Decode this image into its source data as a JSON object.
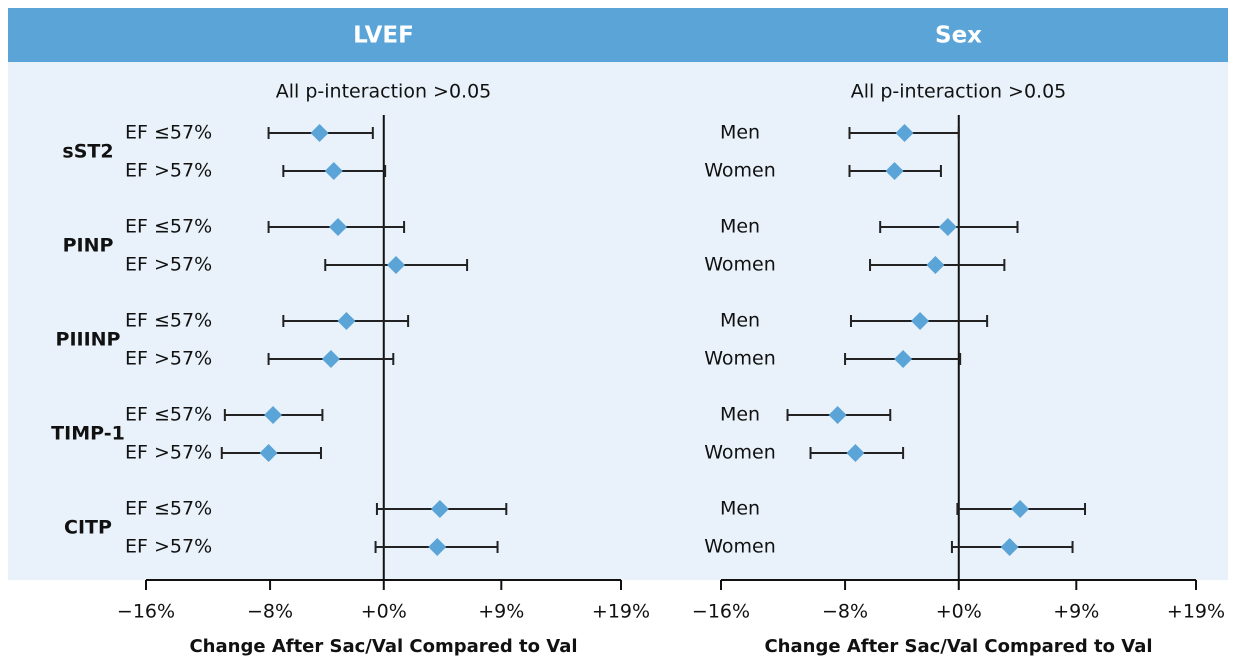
{
  "chart_data": [
    {
      "type": "forest",
      "title": "LVEF",
      "annotation": "All p-interaction >0.05",
      "xlabel": "Change After Sac/Val Compared to Val",
      "scale": "log-ratio",
      "color": "#5ba4d8",
      "xlim": [
        -16,
        19
      ],
      "xticks": [
        {
          "value": -16,
          "label": "−16%"
        },
        {
          "value": -8,
          "label": "−8%"
        },
        {
          "value": 0,
          "label": "+0%"
        },
        {
          "value": 9,
          "label": "+9%"
        },
        {
          "value": 19,
          "label": "+19%"
        }
      ],
      "groups": [
        "sST2",
        "PINP",
        "PIIINP",
        "TIMP-1",
        "CITP"
      ],
      "categories": [
        "EF ≤57%",
        "EF >57%",
        "EF ≤57%",
        "EF >57%",
        "EF ≤57%",
        "EF >57%",
        "EF ≤57%",
        "EF >57%",
        "EF ≤57%",
        "EF >57%"
      ],
      "values": [
        -4.6,
        -3.6,
        -3.3,
        0.9,
        -2.7,
        -3.8,
        -7.8,
        -8.1,
        4.2,
        4.0
      ],
      "lower": [
        -8.1,
        -7.1,
        -8.1,
        -4.2,
        -7.1,
        -8.1,
        -11.0,
        -11.2,
        -0.5,
        -0.6
      ],
      "upper": [
        -0.8,
        0.1,
        1.5,
        6.3,
        1.8,
        0.7,
        -4.4,
        -4.5,
        9.4,
        8.7
      ]
    },
    {
      "type": "forest",
      "title": "Sex",
      "annotation": "All p-interaction >0.05",
      "xlabel": "Change After Sac/Val Compared to Val",
      "scale": "log-ratio",
      "color": "#5ba4d8",
      "xlim": [
        -16,
        19
      ],
      "xticks": [
        {
          "value": -16,
          "label": "−16%"
        },
        {
          "value": -8,
          "label": "−8%"
        },
        {
          "value": 0,
          "label": "+0%"
        },
        {
          "value": 9,
          "label": "+9%"
        },
        {
          "value": 19,
          "label": "+19%"
        }
      ],
      "categories": [
        "Men",
        "Women",
        "Men",
        "Women",
        "Men",
        "Women",
        "Men",
        "Women",
        "Men",
        "Women"
      ],
      "values": [
        -3.9,
        -4.6,
        -0.8,
        -1.7,
        -2.8,
        -4.0,
        -8.5,
        -7.3,
        4.6,
        3.8
      ],
      "lower": [
        -7.7,
        -7.7,
        -5.6,
        -6.3,
        -7.6,
        -8.0,
        -11.8,
        -10.3,
        -0.1,
        -0.5
      ],
      "upper": [
        0.0,
        -1.3,
        4.4,
        3.4,
        2.1,
        0.1,
        -4.9,
        -4.0,
        9.7,
        8.7
      ]
    }
  ]
}
